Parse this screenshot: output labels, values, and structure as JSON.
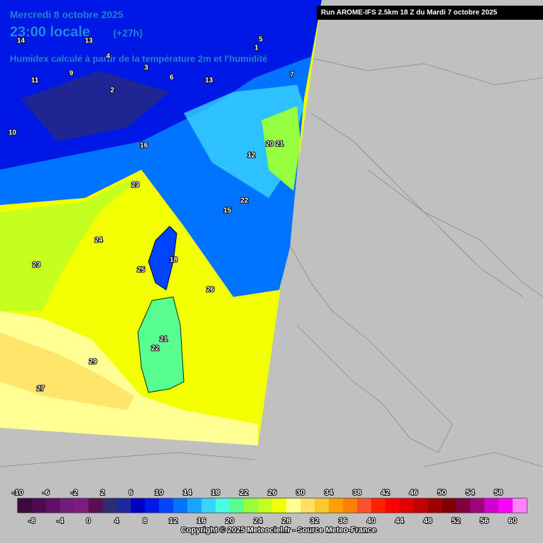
{
  "header": {
    "date": "Mercredi 8 octobre 2025",
    "time": "23:00 locale",
    "lead": "(+27h)",
    "description": "Humidex calculé à partir de la température 2m et l'humidité",
    "run": "Run AROME-IFS 2.5km 18 Z du Mardi 7 octobre 2025"
  },
  "map_labels": [
    14,
    13,
    9,
    11,
    3,
    4,
    5,
    7,
    2,
    1,
    10,
    6,
    16,
    13,
    12,
    23,
    15,
    18,
    24,
    23,
    25,
    21,
    22,
    26,
    29,
    27,
    20,
    21,
    22
  ],
  "legend": {
    "values": [
      -10,
      -8,
      -6,
      -4,
      -2,
      0,
      2,
      4,
      6,
      8,
      10,
      12,
      14,
      16,
      18,
      20,
      22,
      24,
      26,
      28,
      30,
      32,
      34,
      36,
      38,
      40,
      42,
      44,
      46,
      48,
      50,
      52,
      54,
      56,
      58,
      60
    ],
    "colors": [
      "#3c0a3c",
      "#4e0c50",
      "#600f66",
      "#721a80",
      "#7e1c7e",
      "#5a1050",
      "#2c2c70",
      "#1a2a9c",
      "#0000c4",
      "#0018e6",
      "#0044ff",
      "#0074ff",
      "#18a4ff",
      "#38d4ff",
      "#48ffe0",
      "#58ff90",
      "#96ff40",
      "#c4ff20",
      "#f2ff00",
      "#ffff94",
      "#ffe060",
      "#ffc830",
      "#ffa000",
      "#ff8000",
      "#ff5030",
      "#ff2000",
      "#ff0000",
      "#e00000",
      "#c00000",
      "#a00000",
      "#800000",
      "#800040",
      "#a00080",
      "#d000d0",
      "#ff00ff",
      "#ff80ff"
    ]
  },
  "footer": {
    "copyright": "Copyright © 2025 Meteociel.fr - Source Meteo-France"
  }
}
